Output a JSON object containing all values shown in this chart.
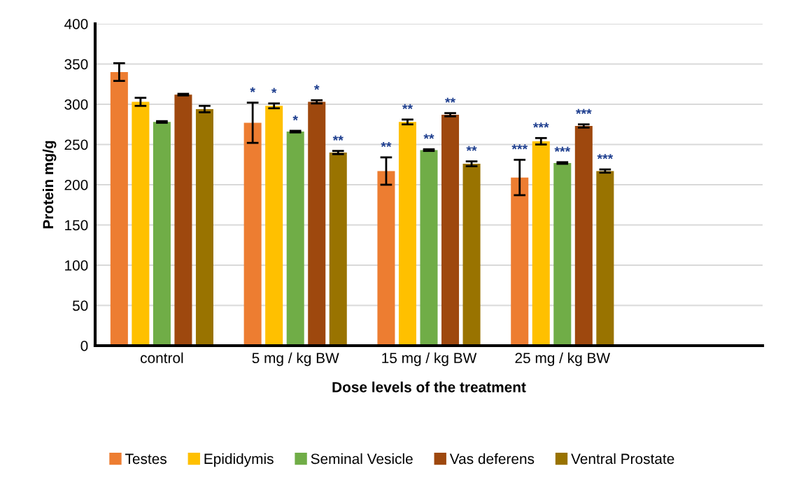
{
  "chart_data": {
    "type": "bar",
    "xlabel": "Dose levels of the treatment",
    "ylabel": "Protein mg/g",
    "categories": [
      "control",
      "5 mg / kg BW",
      "15 mg / kg BW",
      "25 mg / kg BW",
      null
    ],
    "ylim": [
      0,
      400
    ],
    "yticks": [
      0,
      50,
      100,
      150,
      200,
      250,
      300,
      350,
      400
    ],
    "grid": "y",
    "legend": "bottom",
    "series": [
      {
        "name": "Testes",
        "color": "#ed7d31",
        "values": [
          340,
          277,
          217,
          209,
          null
        ],
        "errors": [
          11,
          25,
          17,
          22,
          null
        ],
        "value_labels": [
          null,
          "*",
          "**",
          "***",
          null
        ]
      },
      {
        "name": "Epididymis",
        "color": "#ffc000",
        "values": [
          303,
          298,
          278,
          254,
          null
        ],
        "errors": [
          5,
          3,
          3,
          4,
          null
        ],
        "value_labels": [
          null,
          "*",
          "**",
          "***",
          null
        ]
      },
      {
        "name": "Seminal Vesicle",
        "color": "#70ad47",
        "values": [
          278,
          266,
          243,
          227,
          null
        ],
        "errors": [
          1,
          1,
          1,
          1,
          null
        ],
        "value_labels": [
          null,
          "*",
          "**",
          "***",
          null
        ]
      },
      {
        "name": "Vas deferens",
        "color": "#9e480e",
        "values": [
          312,
          303,
          287,
          273,
          null
        ],
        "errors": [
          1,
          2,
          2,
          2,
          null
        ],
        "value_labels": [
          null,
          "*",
          "**",
          "***",
          null
        ]
      },
      {
        "name": "Ventral Prostate",
        "color": "#997300",
        "values": [
          294,
          240,
          226,
          217,
          null
        ],
        "errors": [
          4,
          2,
          3,
          2,
          null
        ],
        "value_labels": [
          null,
          "**",
          "**",
          "***",
          null
        ]
      }
    ]
  }
}
